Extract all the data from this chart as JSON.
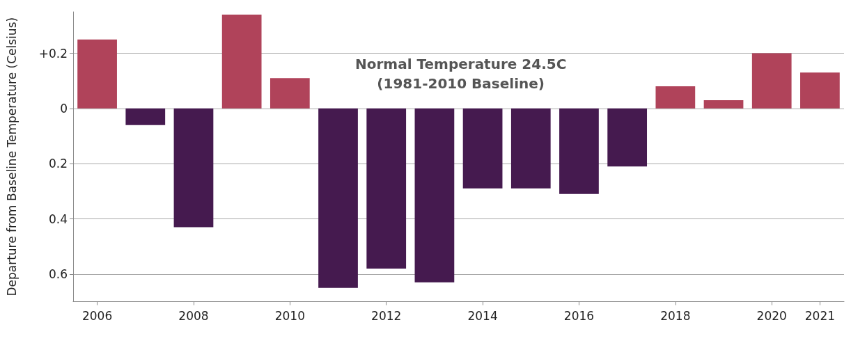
{
  "chart_data": {
    "type": "bar",
    "ylabel": "Departure from Baseline Temperature (Celsius)",
    "categories": [
      "2006",
      null,
      "2008",
      null,
      "2010",
      null,
      "2012",
      null,
      "2014",
      null,
      "2016",
      null,
      "2018",
      null,
      "2020",
      "2021"
    ],
    "values": [
      0.25,
      -0.06,
      -0.43,
      0.34,
      0.11,
      -0.65,
      -0.58,
      -0.63,
      -0.29,
      -0.29,
      -0.31,
      -0.21,
      0.08,
      0.03,
      0.2,
      0.13
    ],
    "colors": [
      "#b0435a",
      "#451a4f",
      "#451a4f",
      "#b0435a",
      "#b0435a",
      "#451a4f",
      "#451a4f",
      "#451a4f",
      "#451a4f",
      "#451a4f",
      "#451a4f",
      "#451a4f",
      "#b0435a",
      "#b0435a",
      "#b0435a",
      "#b0435a"
    ],
    "ylim": [
      -0.7,
      0.35
    ],
    "yticks": [
      {
        "value": -0.6,
        "label": "0.6"
      },
      {
        "value": -0.4,
        "label": "0.4"
      },
      {
        "value": -0.2,
        "label": "0.2"
      },
      0,
      {
        "value": 0.2,
        "label": "+0.2"
      }
    ],
    "grid": "y",
    "annotations": [
      "Normal Temperature 24.5C\n(1981-2010 Baseline)"
    ]
  }
}
